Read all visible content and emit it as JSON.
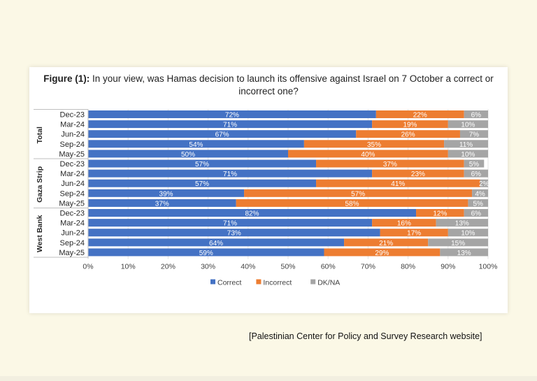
{
  "chart_data": {
    "type": "bar",
    "orientation": "horizontal",
    "stacked": true,
    "title_bold": "Figure (1):",
    "title": "In your view, was Hamas decision to launch its offensive against Israel on 7 October a correct or incorrect one?",
    "groups": [
      {
        "name": "Total",
        "rows": [
          {
            "label": "Dec-23",
            "values": [
              72,
              22,
              6
            ]
          },
          {
            "label": "Mar-24",
            "values": [
              71,
              19,
              10
            ]
          },
          {
            "label": "Jun-24",
            "values": [
              67,
              26,
              7
            ]
          },
          {
            "label": "Sep-24",
            "values": [
              54,
              35,
              11
            ]
          },
          {
            "label": "May-25",
            "values": [
              50,
              40,
              10
            ]
          }
        ]
      },
      {
        "name": "Gaza Strip",
        "rows": [
          {
            "label": "Dec-23",
            "values": [
              57,
              37,
              5
            ]
          },
          {
            "label": "Mar-24",
            "values": [
              71,
              23,
              6
            ]
          },
          {
            "label": "Jun-24",
            "values": [
              57,
              41,
              2
            ]
          },
          {
            "label": "Sep-24",
            "values": [
              39,
              57,
              4
            ]
          },
          {
            "label": "May-25",
            "values": [
              37,
              58,
              5
            ]
          }
        ]
      },
      {
        "name": "West Bank",
        "rows": [
          {
            "label": "Dec-23",
            "values": [
              82,
              12,
              6
            ]
          },
          {
            "label": "Mar-24",
            "values": [
              71,
              16,
              13
            ]
          },
          {
            "label": "Jun-24",
            "values": [
              73,
              17,
              10
            ]
          },
          {
            "label": "Sep-24",
            "values": [
              64,
              21,
              15
            ]
          },
          {
            "label": "May-25",
            "values": [
              59,
              29,
              13
            ]
          }
        ]
      }
    ],
    "series": [
      {
        "name": "Correct",
        "color": "#4472c4"
      },
      {
        "name": "Incorrect",
        "color": "#ed7d31"
      },
      {
        "name": "DK/NA",
        "color": "#a5a5a5"
      }
    ],
    "xlim": [
      0,
      100
    ],
    "xticks": [
      "0%",
      "10%",
      "20%",
      "30%",
      "40%",
      "50%",
      "60%",
      "70%",
      "80%",
      "90%",
      "100%"
    ],
    "data_label_suffix": "%",
    "legend_position": "bottom"
  },
  "caption": "[Palestinian Center for Policy and Survey Research website]"
}
